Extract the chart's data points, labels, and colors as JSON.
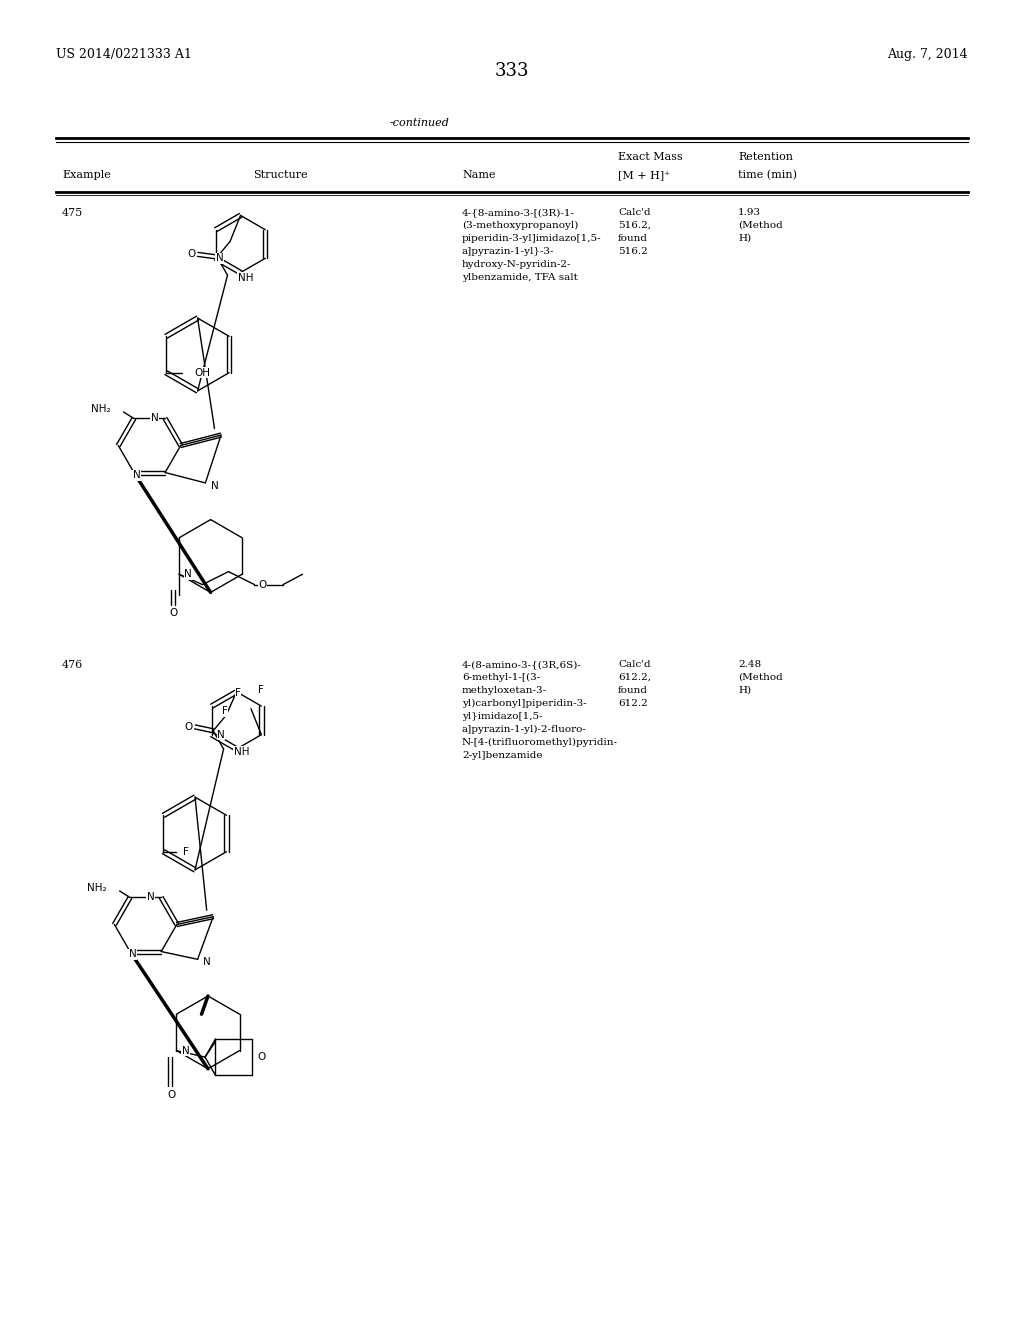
{
  "bg_color": "#ffffff",
  "header_left": "US 2014/0221333 A1",
  "header_right": "Aug. 7, 2014",
  "page_number": "333",
  "continued_text": "-continued",
  "font_size_header": 9,
  "font_size_body": 8,
  "font_size_page_num": 13,
  "text_color": "#000000",
  "rows": [
    {
      "example": "475",
      "name_lines": [
        "4-{8-amino-3-[(3R)-1-",
        "(3-methoxypropanoyl)",
        "piperidin-3-yl]imidazo[1,5-",
        "a]pyrazin-1-yl}-3-",
        "hydroxy-N-pyridin-2-",
        "ylbenzamide, TFA salt"
      ],
      "mass_label": "Calc'd",
      "mass_value": "516.2,",
      "mass_found_label": "found",
      "mass_found_value": "516.2",
      "retention": "1.93",
      "retention_method": "(Method",
      "retention_method2": "H)"
    },
    {
      "example": "476",
      "name_lines": [
        "4-(8-amino-3-{(3R,6S)-",
        "6-methyl-1-[(3-",
        "methyloxetan-3-",
        "yl)carbonyl]piperidin-3-",
        "yl}imidazo[1,5-",
        "a]pyrazin-1-yl)-2-fluoro-",
        "N-[4-(trifluoromethyl)pyridin-",
        "2-yl]benzamide"
      ],
      "mass_label": "Calc'd",
      "mass_value": "612.2,",
      "mass_found_label": "found",
      "mass_found_value": "612.2",
      "retention": "2.48",
      "retention_method": "(Method",
      "retention_method2": "H)"
    }
  ]
}
